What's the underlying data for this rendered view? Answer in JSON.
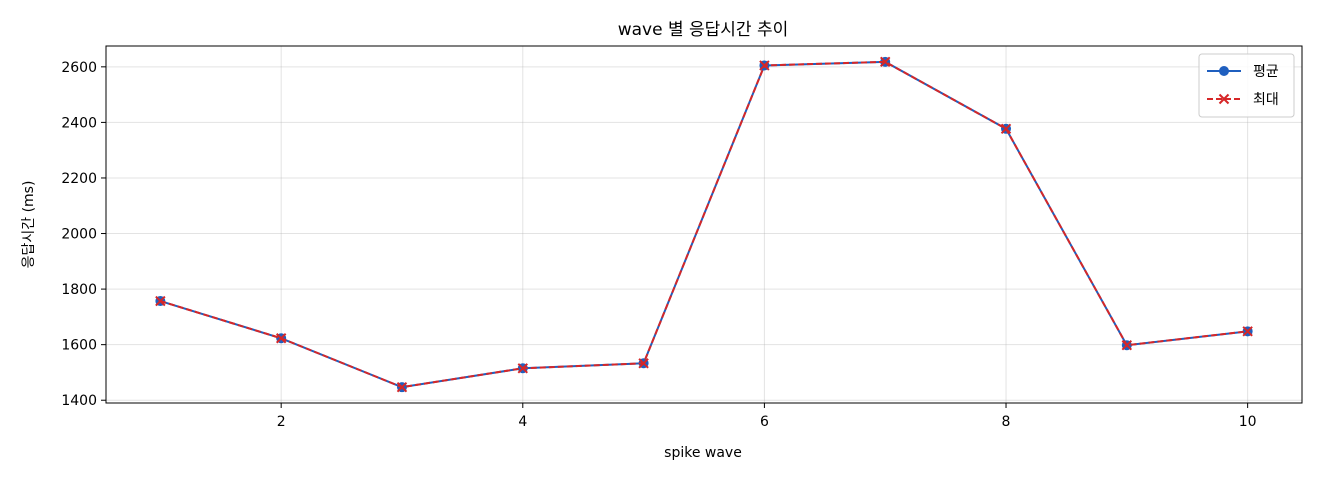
{
  "chart_data": {
    "type": "line",
    "title": "wave 별 응답시간 추이",
    "xlabel": "spike wave",
    "ylabel": "응답시간 (ms)",
    "x": [
      1,
      2,
      3,
      4,
      5,
      6,
      7,
      8,
      9,
      10
    ],
    "xlim": [
      0.55,
      10.45
    ],
    "ylim": [
      1390,
      2675
    ],
    "xticks": [
      2,
      4,
      6,
      8,
      10
    ],
    "yticks": [
      1400,
      1600,
      1800,
      2000,
      2200,
      2400,
      2600
    ],
    "grid": true,
    "legend_position": "top-right",
    "series": [
      {
        "name": "평균",
        "values": [
          1757,
          1623,
          1447,
          1515,
          1533,
          2605,
          2618,
          2377,
          1598,
          1648
        ],
        "color": "#1f5fbf",
        "marker": "circle",
        "line_style": "solid"
      },
      {
        "name": "최대",
        "values": [
          1757,
          1623,
          1447,
          1515,
          1533,
          2605,
          2618,
          2377,
          1598,
          1648
        ],
        "color": "#d62728",
        "marker": "x",
        "line_style": "dashed"
      }
    ]
  }
}
